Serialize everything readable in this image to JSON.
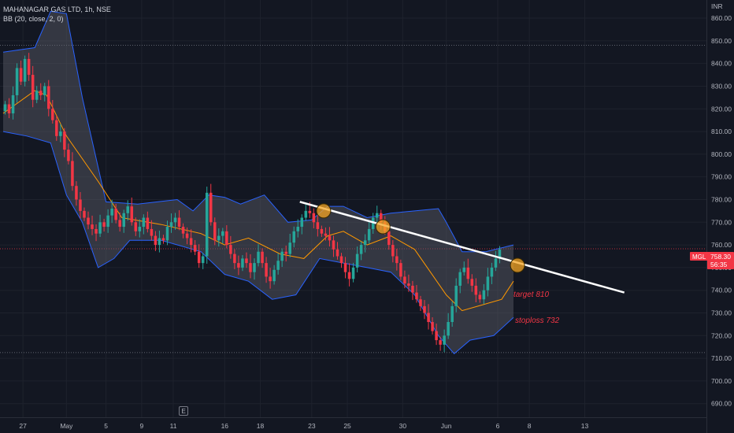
{
  "header": {
    "symbol_line": "MAHANAGAR GAS LTD, 1h, NSE",
    "indicator_line": "BB (20, close, 2, 0)"
  },
  "price_axis": {
    "currency": "INR"
  },
  "price_tag": {
    "ticker": "MGL",
    "price": "758.30",
    "countdown": "56:35"
  },
  "e_marker": "E",
  "annotations": {
    "target": "target 810",
    "stoploss": "stoploss 732"
  },
  "colors": {
    "up": "#26a69a",
    "down": "#f23645",
    "band_fill": "#5d606b",
    "band_line": "#2962ff",
    "basis": "#ff9800",
    "trendline": "#ffffff",
    "marker": "#f5a623",
    "background": "#131722"
  },
  "chart_data": {
    "type": "candlestick",
    "title": "MAHANAGAR GAS LTD, 1h, NSE",
    "indicator": "BB (20, close, 2, 0)",
    "ylim": [
      684,
      868
    ],
    "y_ticks": [
      690,
      700,
      710,
      720,
      730,
      740,
      750,
      760,
      770,
      780,
      790,
      800,
      810,
      820,
      830,
      840,
      850,
      860
    ],
    "x_ticks": [
      "27",
      "May",
      "5",
      "9",
      "11",
      "16",
      "18",
      "23",
      "25",
      "30",
      "Jun",
      "6",
      "8",
      "13"
    ],
    "x_range": [
      0,
      140
    ],
    "x_tick_index": [
      5,
      16,
      26,
      35,
      43,
      56,
      65,
      78,
      87,
      101,
      112,
      125,
      133,
      147
    ],
    "last_price": 758.3,
    "horizontal_lines": [
      848,
      712.5
    ],
    "closes": [
      822,
      818,
      826,
      838,
      832,
      842,
      835,
      824,
      828,
      826,
      830,
      820,
      815,
      808,
      810,
      802,
      797,
      786,
      780,
      775,
      772,
      769,
      767,
      765,
      770,
      768,
      773,
      776,
      771,
      768,
      774,
      777,
      770,
      766,
      768,
      772,
      767,
      764,
      760,
      763,
      762,
      768,
      770,
      772,
      768,
      765,
      763,
      760,
      757,
      752,
      755,
      783,
      770,
      762,
      764,
      766,
      760,
      756,
      752,
      750,
      754,
      752,
      748,
      752,
      757,
      752,
      746,
      744,
      749,
      753,
      757,
      756,
      761,
      766,
      768,
      772,
      775,
      774,
      770,
      767,
      765,
      764,
      762,
      758,
      755,
      752,
      748,
      745,
      750,
      756,
      760,
      762,
      767,
      772,
      774,
      770,
      766,
      760,
      755,
      752,
      746,
      743,
      742,
      739,
      736,
      733,
      730,
      726,
      722,
      718,
      716,
      720,
      726,
      733,
      742,
      748,
      750,
      745,
      742,
      738,
      736,
      740,
      746,
      750,
      754,
      758
    ],
    "bb_basis_points": [
      [
        0,
        818
      ],
      [
        8,
        828
      ],
      [
        11,
        826
      ],
      [
        16,
        808
      ],
      [
        24,
        788
      ],
      [
        30,
        772
      ],
      [
        40,
        769
      ],
      [
        50,
        765
      ],
      [
        56,
        760
      ],
      [
        62,
        763
      ],
      [
        70,
        756
      ],
      [
        76,
        754
      ],
      [
        82,
        764
      ],
      [
        86,
        766
      ],
      [
        92,
        760
      ],
      [
        98,
        764
      ],
      [
        104,
        758
      ],
      [
        108,
        748
      ],
      [
        112,
        738
      ],
      [
        116,
        731
      ],
      [
        120,
        733
      ],
      [
        126,
        736
      ],
      [
        129,
        744
      ]
    ],
    "bb_upper_points": [
      [
        0,
        845
      ],
      [
        8,
        847
      ],
      [
        12,
        863
      ],
      [
        16,
        862
      ],
      [
        20,
        825
      ],
      [
        26,
        779
      ],
      [
        34,
        778
      ],
      [
        44,
        780
      ],
      [
        48,
        775
      ],
      [
        52,
        782
      ],
      [
        56,
        781
      ],
      [
        60,
        778
      ],
      [
        66,
        782
      ],
      [
        72,
        770
      ],
      [
        78,
        771
      ],
      [
        82,
        777
      ],
      [
        86,
        777
      ],
      [
        92,
        772
      ],
      [
        98,
        774
      ],
      [
        104,
        775
      ],
      [
        110,
        776
      ],
      [
        112,
        770
      ],
      [
        116,
        757
      ],
      [
        122,
        757
      ],
      [
        129,
        760
      ]
    ],
    "bb_lower_points": [
      [
        0,
        810
      ],
      [
        6,
        808
      ],
      [
        12,
        805
      ],
      [
        16,
        782
      ],
      [
        20,
        770
      ],
      [
        24,
        750
      ],
      [
        28,
        754
      ],
      [
        32,
        762
      ],
      [
        40,
        762
      ],
      [
        50,
        757
      ],
      [
        56,
        747
      ],
      [
        62,
        744
      ],
      [
        68,
        736
      ],
      [
        74,
        738
      ],
      [
        80,
        754
      ],
      [
        86,
        752
      ],
      [
        92,
        750
      ],
      [
        98,
        748
      ],
      [
        104,
        738
      ],
      [
        110,
        720
      ],
      [
        114,
        712
      ],
      [
        118,
        718
      ],
      [
        124,
        720
      ],
      [
        129,
        728
      ]
    ],
    "trendline": [
      [
        75,
        779
      ],
      [
        157,
        739
      ]
    ],
    "touch_points": [
      [
        81,
        775
      ],
      [
        96,
        768
      ],
      [
        130,
        751
      ]
    ],
    "annotations": [
      {
        "text": "target 810",
        "x": 132,
        "y": 741
      },
      {
        "text": "stoploss 732",
        "x": 132,
        "y": 728
      }
    ]
  }
}
